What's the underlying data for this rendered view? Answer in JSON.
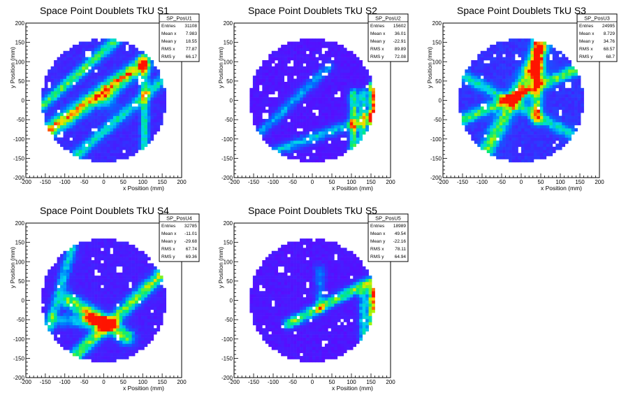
{
  "chart_data": [
    {
      "type": "heatmap",
      "title": "Space Point Doublets TkU S1",
      "xlabel": "x Position (mm)",
      "ylabel": "y Position (mm)",
      "xlim": [
        -200,
        200
      ],
      "ylim": [
        -200,
        200
      ],
      "xticks": [
        -200,
        -150,
        -100,
        -50,
        0,
        50,
        100,
        150,
        200
      ],
      "yticks": [
        -200,
        -150,
        -100,
        -50,
        0,
        50,
        100,
        150,
        200
      ],
      "grid": false,
      "detector_radius_mm": 160,
      "pattern": {
        "background": 0.17,
        "stripes": [
          {
            "x1": -150,
            "y1": -85,
            "x2": 100,
            "y2": 95,
            "peak": 0.72,
            "width": 14,
            "hot_x": 10,
            "hot_y": 2,
            "hot_peak": 1.0
          },
          {
            "x1": -160,
            "y1": -15,
            "x2": 30,
            "y2": 155,
            "peak": 0.5,
            "width": 10
          },
          {
            "x1": -80,
            "y1": -150,
            "x2": 160,
            "y2": 60,
            "peak": 0.4,
            "width": 10
          },
          {
            "x1": 105,
            "y1": -150,
            "x2": 105,
            "y2": 110,
            "peak": 0.42,
            "width": 8
          }
        ],
        "holes": [
          [
            -140,
            40
          ],
          [
            -25,
            -75
          ],
          [
            80,
            -15
          ],
          [
            95,
            55
          ],
          [
            -40,
            120
          ],
          [
            60,
            135
          ],
          [
            -110,
            -90
          ]
        ]
      },
      "stats": {
        "name": "SP_PosU1",
        "rows": [
          {
            "label": "Entries",
            "value": "31108"
          },
          {
            "label": "Mean x",
            "value": "7.983"
          },
          {
            "label": "Mean y",
            "value": "18.55"
          },
          {
            "label": "RMS x",
            "value": "77.87"
          },
          {
            "label": "RMS y",
            "value": "66.17"
          }
        ]
      }
    },
    {
      "type": "heatmap",
      "title": "Space Point Doublets TkU S2",
      "xlabel": "x Position (mm)",
      "ylabel": "y Position (mm)",
      "xlim": [
        -200,
        200
      ],
      "ylim": [
        -200,
        200
      ],
      "xticks": [
        -200,
        -150,
        -100,
        -50,
        0,
        50,
        100,
        150,
        200
      ],
      "yticks": [
        -200,
        -150,
        -100,
        -50,
        0,
        50,
        100,
        150,
        200
      ],
      "grid": false,
      "detector_radius_mm": 160,
      "pattern": {
        "background": 0.1,
        "stripes": [
          {
            "x1": -140,
            "y1": -90,
            "x2": 40,
            "y2": 85,
            "peak": 0.32,
            "width": 10
          },
          {
            "x1": -120,
            "y1": -140,
            "x2": 160,
            "y2": -40,
            "peak": 0.38,
            "width": 10
          },
          {
            "x1": 105,
            "y1": -140,
            "x2": 105,
            "y2": 20,
            "peak": 0.55,
            "width": 8
          },
          {
            "x1": 130,
            "y1": -130,
            "x2": 130,
            "y2": 20,
            "peak": 0.5,
            "width": 8
          },
          {
            "x1": 155,
            "y1": -110,
            "x2": 155,
            "y2": 40,
            "peak": 0.88,
            "width": 7
          }
        ],
        "holes": [
          [
            -120,
            110
          ],
          [
            -55,
            95
          ],
          [
            30,
            130
          ],
          [
            -95,
            15
          ],
          [
            65,
            15
          ],
          [
            -30,
            -75
          ],
          [
            80,
            -100
          ],
          [
            -5,
            60
          ],
          [
            -120,
            -40
          ],
          [
            40,
            95
          ],
          [
            10,
            -30
          ],
          [
            -70,
            55
          ]
        ]
      },
      "stats": {
        "name": "SP_PosU2",
        "rows": [
          {
            "label": "Entries",
            "value": "15602"
          },
          {
            "label": "Mean x",
            "value": "36.01"
          },
          {
            "label": "Mean y",
            "value": "-22.91"
          },
          {
            "label": "RMS x",
            "value": "89.89"
          },
          {
            "label": "RMS y",
            "value": "72.08"
          }
        ]
      }
    },
    {
      "type": "heatmap",
      "title": "Space Point Doublets TkU S3",
      "xlabel": "x Position (mm)",
      "ylabel": "y Position (mm)",
      "xlim": [
        -200,
        200
      ],
      "ylim": [
        -200,
        200
      ],
      "xticks": [
        -200,
        -150,
        -100,
        -50,
        0,
        50,
        100,
        150,
        200
      ],
      "yticks": [
        -200,
        -150,
        -100,
        -50,
        0,
        50,
        100,
        150,
        200
      ],
      "grid": false,
      "detector_radius_mm": 160,
      "pattern": {
        "background": 0.2,
        "stripes": [
          {
            "x1": -100,
            "y1": -150,
            "x2": 60,
            "y2": 150,
            "peak": 0.52,
            "width": 14
          },
          {
            "x1": -150,
            "y1": -50,
            "x2": 140,
            "y2": 80,
            "peak": 0.5,
            "width": 10
          },
          {
            "x1": 40,
            "y1": -50,
            "x2": 40,
            "y2": 150,
            "peak": 0.55,
            "width": 10,
            "hot_x": 40,
            "hot_y": 80,
            "hot_peak": 0.95
          },
          {
            "x1": -140,
            "y1": 60,
            "x2": 150,
            "y2": -100,
            "peak": 0.38,
            "width": 10
          }
        ],
        "holes": [
          [
            -90,
            100
          ],
          [
            -10,
            110
          ],
          [
            -95,
            -15
          ],
          [
            100,
            -30
          ],
          [
            120,
            40
          ],
          [
            -60,
            -100
          ],
          [
            -5,
            -130
          ],
          [
            75,
            110
          ]
        ]
      },
      "stats": {
        "name": "SP_PosU3",
        "rows": [
          {
            "label": "Entries",
            "value": "24995"
          },
          {
            "label": "Mean x",
            "value": "8.729"
          },
          {
            "label": "Mean y",
            "value": "34.76"
          },
          {
            "label": "RMS x",
            "value": "68.57"
          },
          {
            "label": "RMS y",
            "value": "68.7"
          }
        ]
      }
    },
    {
      "type": "heatmap",
      "title": "Space Point Doublets TkU S4",
      "xlabel": "x Position (mm)",
      "ylabel": "y Position (mm)",
      "xlim": [
        -200,
        200
      ],
      "ylim": [
        -200,
        200
      ],
      "xticks": [
        -200,
        -150,
        -100,
        -50,
        0,
        50,
        100,
        150,
        200
      ],
      "yticks": [
        -200,
        -150,
        -100,
        -50,
        0,
        50,
        100,
        150,
        200
      ],
      "grid": false,
      "detector_radius_mm": 160,
      "pattern": {
        "background": 0.13,
        "stripes": [
          {
            "x1": -90,
            "y1": 0,
            "x2": 60,
            "y2": -95,
            "peak": 0.6,
            "width": 14,
            "hot_x": -30,
            "hot_y": -45,
            "hot_peak": 0.95
          },
          {
            "x1": -80,
            "y1": -150,
            "x2": 150,
            "y2": 70,
            "peak": 0.6,
            "width": 12
          },
          {
            "x1": -150,
            "y1": -100,
            "x2": -80,
            "y2": 140,
            "peak": 0.38,
            "width": 10
          },
          {
            "x1": -130,
            "y1": -50,
            "x2": 20,
            "y2": -60,
            "peak": 0.3,
            "width": 12
          }
        ],
        "holes": [
          [
            20,
            130
          ],
          [
            70,
            40
          ],
          [
            120,
            100
          ],
          [
            -20,
            70
          ],
          [
            40,
            80
          ]
        ]
      },
      "stats": {
        "name": "SP_PosU4",
        "rows": [
          {
            "label": "Entries",
            "value": "32785"
          },
          {
            "label": "Mean x",
            "value": "-11.01"
          },
          {
            "label": "Mean y",
            "value": "-29.68"
          },
          {
            "label": "RMS x",
            "value": "67.74"
          },
          {
            "label": "RMS y",
            "value": "69.36"
          }
        ]
      }
    },
    {
      "type": "heatmap",
      "title": "Space Point Doublets TkU S5",
      "xlabel": "x Position (mm)",
      "ylabel": "y Position (mm)",
      "xlim": [
        -200,
        200
      ],
      "ylim": [
        -200,
        200
      ],
      "xticks": [
        -200,
        -150,
        -100,
        -50,
        0,
        50,
        100,
        150,
        200
      ],
      "yticks": [
        -200,
        -150,
        -100,
        -50,
        0,
        50,
        100,
        150,
        200
      ],
      "grid": false,
      "detector_radius_mm": 160,
      "pattern": {
        "background": 0.1,
        "stripes": [
          {
            "x1": -60,
            "y1": -60,
            "x2": 150,
            "y2": 50,
            "peak": 0.6,
            "width": 10
          },
          {
            "x1": 155,
            "y1": -80,
            "x2": 155,
            "y2": 30,
            "peak": 0.82,
            "width": 8
          },
          {
            "x1": 130,
            "y1": -100,
            "x2": 130,
            "y2": 20,
            "peak": 0.42,
            "width": 8
          },
          {
            "x1": 20,
            "y1": -20,
            "x2": 20,
            "y2": 80,
            "peak": 0.25,
            "width": 10
          }
        ],
        "holes": [
          [
            -130,
            30
          ],
          [
            -80,
            80
          ],
          [
            -20,
            140
          ],
          [
            60,
            110
          ],
          [
            -100,
            -10
          ],
          [
            -45,
            -85
          ],
          [
            30,
            -110
          ],
          [
            85,
            -60
          ],
          [
            -10,
            40
          ],
          [
            100,
            60
          ]
        ]
      },
      "stats": {
        "name": "SP_PosU5",
        "rows": [
          {
            "label": "Entries",
            "value": "18989"
          },
          {
            "label": "Mean x",
            "value": "49.54"
          },
          {
            "label": "Mean y",
            "value": "-22.16"
          },
          {
            "label": "RMS x",
            "value": "78.11"
          },
          {
            "label": "RMS y",
            "value": "64.94"
          }
        ]
      }
    }
  ]
}
